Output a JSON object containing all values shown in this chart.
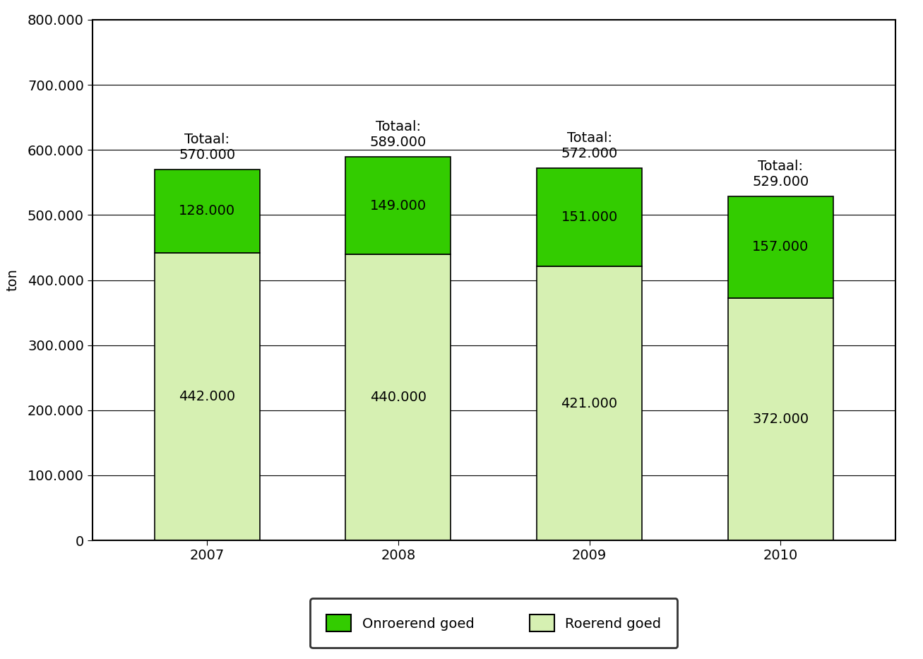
{
  "years": [
    "2007",
    "2008",
    "2009",
    "2010"
  ],
  "roerend": [
    442000,
    440000,
    421000,
    372000
  ],
  "onroerend": [
    128000,
    149000,
    151000,
    157000
  ],
  "totaal": [
    "570.000",
    "589.000",
    "572.000",
    "529.000"
  ],
  "roerend_labels": [
    "442.000",
    "440.000",
    "421.000",
    "372.000"
  ],
  "onroerend_labels": [
    "128.000",
    "149.000",
    "151.000",
    "157.000"
  ],
  "color_roerend": "#d6f0b2",
  "color_onroerend": "#33cc00",
  "color_edge": "#000000",
  "ylabel": "ton",
  "ylim": [
    0,
    800000
  ],
  "yticks": [
    0,
    100000,
    200000,
    300000,
    400000,
    500000,
    600000,
    700000,
    800000
  ],
  "legend_onroerend": "Onroerend goed",
  "legend_roerend": "Roerend goed",
  "bar_width": 0.55,
  "bg_color": "#ffffff",
  "grid_color": "#000000",
  "totaal_fontsize": 14,
  "label_fontsize": 14,
  "tick_fontsize": 14,
  "legend_fontsize": 14,
  "ylabel_fontsize": 14,
  "spine_linewidth": 1.5
}
